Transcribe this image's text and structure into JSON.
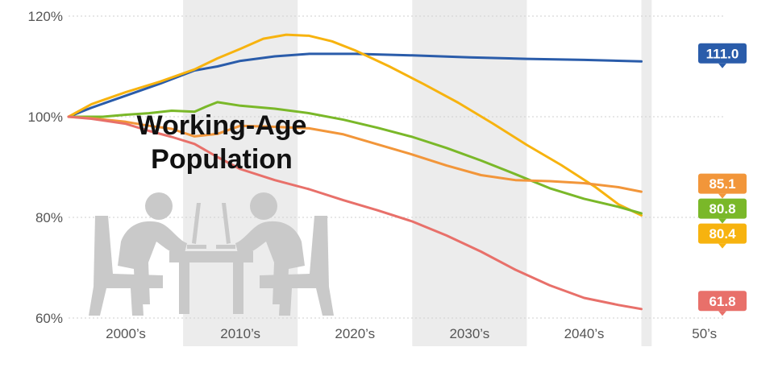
{
  "chart_data": {
    "type": "line",
    "title_lines": [
      "Working-Age",
      "Population"
    ],
    "xlabel": "",
    "ylabel": "",
    "x_range": [
      1995,
      2052
    ],
    "ylim": [
      60,
      120
    ],
    "y_ticks": [
      {
        "value": 120,
        "label": "120%"
      },
      {
        "value": 100,
        "label": "100%"
      },
      {
        "value": 80,
        "label": "80%"
      },
      {
        "value": 60,
        "label": "60%"
      }
    ],
    "x_ticks": [
      {
        "value": 2000,
        "label": "2000’s"
      },
      {
        "value": 2010,
        "label": "2010’s"
      },
      {
        "value": 2020,
        "label": "2020’s"
      },
      {
        "value": 2030,
        "label": "2030’s"
      },
      {
        "value": 2040,
        "label": "2040’s"
      },
      {
        "value": 2050.5,
        "label": "50’s"
      }
    ],
    "shaded_decades": [
      [
        2005,
        2015
      ],
      [
        2025,
        2035
      ],
      [
        2045,
        2045.9
      ]
    ],
    "grid": "horizontal dotted",
    "series": [
      {
        "color": "#2a5caa",
        "end_label": "111.0",
        "x": [
          1995,
          1997,
          2000,
          2003,
          2006,
          2008,
          2010,
          2013,
          2016,
          2020,
          2025,
          2030,
          2035,
          2040,
          2045
        ],
        "values": [
          100,
          101.8,
          104.2,
          106.6,
          109.2,
          110.0,
          111.1,
          112.0,
          112.5,
          112.5,
          112.2,
          111.8,
          111.5,
          111.3,
          111.0
        ]
      },
      {
        "color": "#f7b30f",
        "end_label": "80.4",
        "x": [
          1995,
          1997,
          2000,
          2003,
          2006,
          2008,
          2010,
          2012,
          2014,
          2016,
          2018,
          2020,
          2023,
          2026,
          2029,
          2032,
          2035,
          2038,
          2041,
          2043,
          2045
        ],
        "values": [
          100,
          102.5,
          104.9,
          107.0,
          109.4,
          111.6,
          113.5,
          115.5,
          116.3,
          116.1,
          115.0,
          113.2,
          110.0,
          106.5,
          102.8,
          98.7,
          94.4,
          90.4,
          86.0,
          82.6,
          80.4
        ]
      },
      {
        "color": "#7ab829",
        "end_label": "80.8",
        "x": [
          1995,
          1998,
          2000,
          2002,
          2004,
          2006,
          2007,
          2008,
          2010,
          2013,
          2016,
          2019,
          2022,
          2025,
          2028,
          2031,
          2034,
          2037,
          2040,
          2043,
          2045
        ],
        "values": [
          100,
          100.0,
          100.4,
          100.7,
          101.2,
          101.0,
          102.0,
          102.9,
          102.2,
          101.6,
          100.7,
          99.4,
          97.8,
          96.0,
          93.8,
          91.3,
          88.6,
          85.8,
          83.7,
          82.1,
          80.8
        ]
      },
      {
        "color": "#f2963a",
        "end_label": "85.1",
        "x": [
          1995,
          1997,
          2000,
          2002,
          2004,
          2006,
          2008,
          2010,
          2013,
          2016,
          2019,
          2022,
          2025,
          2028,
          2031,
          2034,
          2037,
          2040,
          2043,
          2045
        ],
        "values": [
          100,
          99.7,
          99.0,
          98.2,
          97.6,
          96.1,
          96.6,
          98.2,
          98.0,
          97.7,
          96.5,
          94.5,
          92.5,
          90.3,
          88.4,
          87.4,
          87.2,
          86.8,
          86.0,
          85.1
        ]
      },
      {
        "color": "#e8706a",
        "end_label": "61.8",
        "x": [
          1995,
          1997,
          2000,
          2002,
          2004,
          2006,
          2008,
          2010,
          2013,
          2016,
          2019,
          2022,
          2025,
          2028,
          2031,
          2034,
          2037,
          2040,
          2043,
          2045
        ],
        "values": [
          100,
          99.6,
          98.6,
          97.2,
          96.0,
          94.6,
          92.0,
          89.6,
          87.4,
          85.6,
          83.4,
          81.4,
          79.2,
          76.4,
          73.2,
          69.6,
          66.5,
          64.0,
          62.6,
          61.8
        ]
      }
    ]
  }
}
